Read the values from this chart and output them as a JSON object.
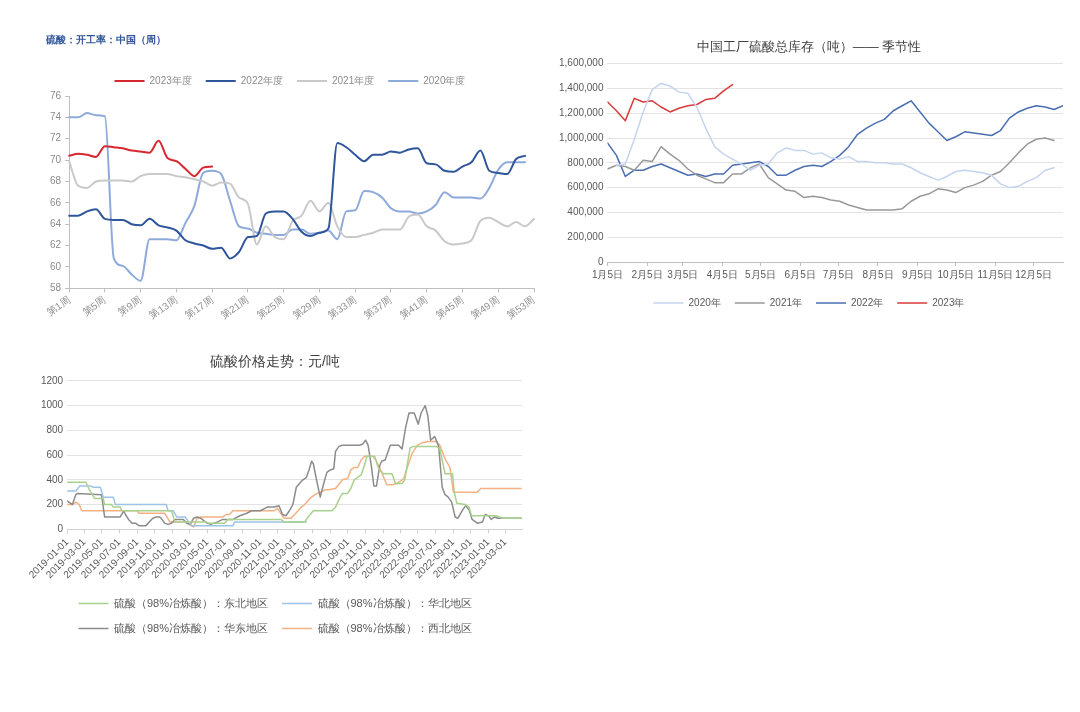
{
  "chart_data": [
    {
      "type": "line",
      "title": "硫酸：开工率：中国（周）",
      "legend": "top",
      "categories": [
        "第1周",
        null,
        null,
        null,
        "第5周",
        null,
        null,
        null,
        "第9周",
        null,
        null,
        null,
        "第13周",
        null,
        null,
        null,
        "第17周",
        null,
        null,
        null,
        "第21周",
        null,
        null,
        null,
        "第25周",
        null,
        null,
        null,
        "第29周",
        null,
        null,
        null,
        "第33周",
        null,
        null,
        null,
        "第37周",
        null,
        null,
        null,
        "第41周",
        null,
        null,
        null,
        "第45周",
        null,
        null,
        null,
        "第49周",
        null,
        null,
        null,
        "第53周"
      ],
      "series": [
        {
          "name": "2023年度",
          "color": "#d7282f",
          "values": [
            70.4,
            70.6,
            70.5,
            70.3,
            71.3,
            71.2,
            71.1,
            70.9,
            70.8,
            70.7,
            71.8,
            70.2,
            69.9,
            69.2,
            68.5,
            69.3,
            69.4,
            null,
            null,
            null,
            null,
            null,
            null,
            null,
            null,
            null,
            null,
            null,
            null,
            null,
            null,
            null,
            null,
            null,
            null,
            null,
            null,
            null,
            null,
            null,
            null,
            null,
            null,
            null,
            null,
            null,
            null,
            null,
            null,
            null,
            null,
            null,
            null
          ]
        },
        {
          "name": "2022年度",
          "color": "#2f559a",
          "values": [
            64.8,
            64.8,
            65.2,
            65.4,
            64.5,
            64.4,
            64.4,
            64.0,
            63.9,
            64.5,
            63.9,
            63.7,
            63.4,
            62.5,
            62.2,
            62.0,
            61.7,
            61.8,
            60.8,
            61.4,
            62.8,
            62.9,
            65.0,
            65.2,
            65.2,
            64.5,
            63.3,
            62.9,
            63.2,
            63.6,
            71.6,
            71.2,
            70.5,
            69.9,
            70.5,
            70.5,
            70.8,
            70.7,
            71.0,
            71.1,
            69.7,
            69.6,
            69.0,
            68.9,
            69.4,
            69.8,
            70.9,
            69.0,
            68.8,
            68.7,
            70.1,
            70.4,
            null
          ]
        },
        {
          "name": "2021年度",
          "color": "#c9c9c9",
          "values": [
            69.9,
            67.6,
            67.4,
            68.0,
            68.1,
            68.1,
            68.1,
            68.0,
            68.5,
            68.7,
            68.7,
            68.7,
            68.5,
            68.4,
            68.2,
            68.0,
            67.6,
            67.9,
            67.8,
            66.5,
            65.9,
            62.1,
            63.8,
            62.8,
            62.6,
            64.3,
            64.8,
            66.2,
            65.2,
            66.0,
            63.8,
            62.8,
            62.8,
            63.0,
            63.2,
            63.5,
            63.5,
            63.5,
            64.7,
            64.9,
            63.8,
            63.4,
            62.4,
            62.1,
            62.2,
            62.5,
            64.3,
            64.6,
            64.2,
            63.8,
            64.2,
            63.8,
            64.5
          ]
        },
        {
          "name": "2020年度",
          "color": "#8eaadb",
          "values": [
            74.0,
            74.0,
            74.4,
            74.2,
            74.1,
            60.8,
            60.1,
            59.3,
            58.7,
            62.6,
            62.6,
            62.6,
            62.5,
            64.1,
            65.7,
            68.8,
            69.0,
            68.7,
            66.2,
            63.8,
            63.6,
            63.2,
            63.1,
            63.0,
            63.0,
            63.5,
            63.5,
            63.1,
            63.2,
            63.4,
            62.6,
            65.2,
            65.3,
            67.1,
            67.0,
            66.5,
            65.5,
            65.2,
            65.2,
            65.0,
            65.2,
            65.8,
            67.0,
            66.5,
            66.5,
            66.5,
            66.4,
            67.4,
            69.1,
            69.8,
            69.8,
            69.8,
            null
          ]
        }
      ],
      "ylim": [
        58,
        76
      ],
      "yticks": [
        58,
        60,
        62,
        64,
        66,
        68,
        70,
        72,
        74,
        76
      ]
    },
    {
      "type": "line",
      "title": "中国工厂硫酸总库存（吨）—— 季节性",
      "legend": "bottom",
      "grid": "y",
      "x": [
        "--01-05",
        "--01-12",
        "--01-19",
        "--01-26",
        "--02-02",
        "--02-09",
        "--02-16",
        "--02-23",
        "--03-02",
        "--03-09",
        "--03-16",
        "--03-23",
        "--03-30",
        "--04-06",
        "--04-13",
        "--04-20",
        "--04-27",
        "--05-04",
        "--05-11",
        "--05-18",
        "--05-25",
        "--06-01",
        "--06-08",
        "--06-15",
        "--06-22",
        "--06-29",
        "--07-06",
        "--07-13",
        "--07-20",
        "--07-27",
        "--08-03",
        "--08-10",
        "--08-17",
        "--08-24",
        "--08-31",
        "--09-07",
        "--09-14",
        "--09-21",
        "--09-28",
        "--10-05",
        "--10-12",
        "--10-19",
        "--10-26",
        "--11-02",
        "--11-09",
        "--11-16",
        "--11-23",
        "--11-30",
        "--12-07",
        "--12-14",
        "--12-21",
        "--12-28"
      ],
      "series": [
        {
          "name": "2020年",
          "color": "#c5d4ee",
          "values": [
            null,
            780000,
            790000,
            990000,
            1210000,
            1390000,
            1440000,
            1420000,
            1370000,
            1360000,
            1250000,
            1080000,
            930000,
            870000,
            830000,
            790000,
            740000,
            780000,
            790000,
            880000,
            920000,
            900000,
            900000,
            870000,
            880000,
            840000,
            830000,
            850000,
            810000,
            810000,
            800000,
            800000,
            790000,
            790000,
            760000,
            720000,
            690000,
            660000,
            690000,
            730000,
            740000,
            730000,
            720000,
            700000,
            630000,
            600000,
            610000,
            650000,
            680000,
            740000,
            760000,
            null
          ]
        },
        {
          "name": "2021年",
          "color": "#999999",
          "values": [
            750000,
            780000,
            770000,
            740000,
            820000,
            810000,
            930000,
            870000,
            820000,
            750000,
            700000,
            670000,
            640000,
            640000,
            710000,
            710000,
            760000,
            790000,
            680000,
            630000,
            580000,
            570000,
            520000,
            530000,
            520000,
            500000,
            490000,
            460000,
            440000,
            420000,
            420000,
            420000,
            420000,
            430000,
            490000,
            530000,
            550000,
            590000,
            580000,
            560000,
            600000,
            620000,
            650000,
            700000,
            730000,
            800000,
            880000,
            950000,
            990000,
            1000000,
            980000,
            null
          ]
        },
        {
          "name": "2022年",
          "color": "#4a6eb0",
          "values": [
            960000,
            860000,
            690000,
            740000,
            740000,
            770000,
            790000,
            760000,
            730000,
            700000,
            710000,
            690000,
            710000,
            710000,
            780000,
            790000,
            800000,
            810000,
            770000,
            700000,
            700000,
            740000,
            770000,
            780000,
            770000,
            810000,
            860000,
            930000,
            1030000,
            1080000,
            1120000,
            1150000,
            1220000,
            1260000,
            1300000,
            1210000,
            1120000,
            1050000,
            980000,
            1010000,
            1050000,
            1040000,
            1030000,
            1020000,
            1060000,
            1160000,
            1210000,
            1240000,
            1260000,
            1250000,
            1230000,
            1260000
          ]
        },
        {
          "name": "2023年",
          "color": "#d93a3a",
          "values": [
            1290000,
            1220000,
            1140000,
            1320000,
            1290000,
            1300000,
            1250000,
            1210000,
            1240000,
            1260000,
            1270000,
            1310000,
            1320000,
            1380000,
            1430000,
            null,
            null,
            null,
            null,
            null,
            null,
            null,
            null,
            null,
            null,
            null,
            null,
            null,
            null,
            null,
            null,
            null,
            null,
            null,
            null,
            null,
            null,
            null,
            null,
            null,
            null,
            null,
            null,
            null,
            null,
            null,
            null,
            null,
            null,
            null,
            null,
            null
          ]
        }
      ],
      "xlim": [
        "--01-05",
        "--12-28"
      ],
      "xticks": [
        {
          "value": "--01-05",
          "label": "1月5日"
        },
        {
          "value": "--02-05",
          "label": "2月5日"
        },
        {
          "value": "--03-05",
          "label": "3月5日"
        },
        {
          "value": "--04-05",
          "label": "4月5日"
        },
        {
          "value": "--05-05",
          "label": "5月5日"
        },
        {
          "value": "--06-05",
          "label": "6月5日"
        },
        {
          "value": "--07-05",
          "label": "7月5日"
        },
        {
          "value": "--08-05",
          "label": "8月5日"
        },
        {
          "value": "--09-05",
          "label": "9月5日"
        },
        {
          "value": "--10-05",
          "label": "10月5日"
        },
        {
          "value": "--11-05",
          "label": "11月5日"
        },
        {
          "value": "--12-05",
          "label": "12月5日"
        }
      ],
      "ylim": [
        0,
        1600000
      ],
      "yticks": [
        0,
        {
          "value": 200000,
          "label": "200,000"
        },
        {
          "value": 400000,
          "label": "400,000"
        },
        {
          "value": 600000,
          "label": "600,000"
        },
        {
          "value": 800000,
          "label": "800,000"
        },
        {
          "value": 1000000,
          "label": "1,000,000"
        },
        {
          "value": 1200000,
          "label": "1,200,000"
        },
        {
          "value": 1400000,
          "label": "1,400,000"
        },
        {
          "value": 1600000,
          "label": "1,600,000"
        }
      ]
    },
    {
      "type": "line",
      "title": "硫酸价格走势：元/吨",
      "legend": "bottom",
      "grid": "y",
      "series": [
        {
          "name": "硫酸（98%冶炼酸）：东北地区",
          "color": "#a9d18e",
          "x": [
            "2019-01-01",
            "2019-03-07",
            "2019-03-19",
            "2019-04-06",
            "2019-05-06",
            "2019-05-11",
            "2019-06-04",
            "2019-06-10",
            "2019-07-04",
            "2019-07-10",
            "2019-12-29",
            "2020-01-10",
            "2020-04-25",
            "2020-05-07",
            "2020-06-30",
            "2020-07-11",
            "2021-01-11",
            "2021-01-23",
            "2021-04-04",
            "2021-04-16",
            "2021-05-04",
            "2021-07-08",
            "2021-07-20",
            "2021-08-03",
            "2021-08-13",
            "2021-08-31",
            "2021-09-11",
            "2021-09-23",
            "2021-10-05",
            "2021-10-17",
            "2021-10-29",
            "2021-11-06",
            "2021-12-03",
            "2021-12-15",
            "2021-12-21",
            "2022-01-02",
            "2022-02-01",
            "2022-02-13",
            "2022-03-08",
            "2022-03-17",
            "2022-04-05",
            "2022-04-19",
            "2022-07-05",
            "2022-07-17",
            "2022-08-04",
            "2022-08-30",
            "2022-09-05",
            "2022-09-14",
            "2022-10-14",
            "2022-10-26",
            "2022-11-04",
            "2023-01-28",
            "2023-02-09",
            "2023-02-21",
            "2023-04-25"
          ],
          "values": [
            380,
            380,
            320,
            250,
            250,
            200,
            200,
            180,
            180,
            150,
            150,
            60,
            60,
            50,
            50,
            80,
            80,
            60,
            60,
            100,
            150,
            150,
            180,
            250,
            290,
            290,
            330,
            400,
            420,
            440,
            520,
            590,
            590,
            500,
            480,
            450,
            450,
            370,
            370,
            400,
            660,
            670,
            670,
            650,
            450,
            450,
            300,
            210,
            200,
            180,
            110,
            110,
            100,
            90,
            90
          ]
        },
        {
          "name": "硫酸（98%冶炼酸）：华北地区",
          "color": "#9dc3e6",
          "x": [
            "2019-01-01",
            "2019-01-31",
            "2019-02-14",
            "2019-03-25",
            "2019-03-31",
            "2019-04-26",
            "2019-05-06",
            "2019-06-10",
            "2019-06-17",
            "2019-12-11",
            "2019-12-17",
            "2020-01-04",
            "2020-01-16",
            "2020-02-14",
            "2020-02-26",
            "2020-03-09",
            "2020-07-29",
            "2020-08-04",
            "2021-04-10"
          ],
          "values": [
            310,
            310,
            350,
            350,
            340,
            340,
            260,
            260,
            200,
            200,
            150,
            150,
            100,
            100,
            60,
            30,
            30,
            60,
            60
          ]
        },
        {
          "name": "硫酸（98%冶炼酸）：华东地区",
          "color": "#8c8c8c",
          "x": [
            "2019-01-01",
            "2019-01-19",
            "2019-01-31",
            "2019-02-06",
            "2019-04-30",
            "2019-05-11",
            "2019-07-04",
            "2019-07-16",
            "2019-07-22",
            "2019-08-02",
            "2019-08-14",
            "2019-08-26",
            "2019-09-07",
            "2019-10-01",
            "2019-10-25",
            "2019-11-05",
            "2019-11-17",
            "2019-11-23",
            "2019-12-05",
            "2019-12-17",
            "2019-12-29",
            "2020-01-10",
            "2020-01-21",
            "2020-02-08",
            "2020-02-20",
            "2020-03-03",
            "2020-03-15",
            "2020-03-27",
            "2020-04-08",
            "2020-04-19",
            "2020-05-01",
            "2020-05-13",
            "2020-05-25",
            "2020-06-06",
            "2020-06-24",
            "2020-07-29",
            "2020-08-22",
            "2020-09-15",
            "2020-10-02",
            "2020-11-01",
            "2020-11-25",
            "2020-12-19",
            "2021-01-05",
            "2021-01-17",
            "2021-01-29",
            "2021-02-10",
            "2021-02-22",
            "2021-03-06",
            "2021-03-17",
            "2021-03-29",
            "2021-04-10",
            "2021-04-19",
            "2021-04-28",
            "2021-05-04",
            "2021-05-16",
            "2021-05-28",
            "2021-06-09",
            "2021-06-20",
            "2021-07-02",
            "2021-07-14",
            "2021-07-20",
            "2021-08-01",
            "2021-08-13",
            "2021-10-11",
            "2021-10-23",
            "2021-11-01",
            "2021-11-10",
            "2021-11-22",
            "2021-11-30",
            "2021-12-09",
            "2021-12-21",
            "2021-12-27",
            "2022-01-08",
            "2022-01-26",
            "2022-02-24",
            "2022-03-08",
            "2022-03-20",
            "2022-04-01",
            "2022-04-19",
            "2022-05-03",
            "2022-05-13",
            "2022-05-27",
            "2022-06-05",
            "2022-06-15",
            "2022-06-29",
            "2022-07-13",
            "2022-07-25",
            "2022-08-04",
            "2022-08-15",
            "2022-08-27",
            "2022-09-08",
            "2022-09-18",
            "2022-10-02",
            "2022-10-14",
            "2022-10-26",
            "2022-11-06",
            "2022-11-24",
            "2022-12-12",
            "2022-12-21",
            "2023-01-02",
            "2023-01-11",
            "2023-01-23",
            "2023-02-03",
            "2023-02-15",
            "2023-04-25"
          ],
          "values": [
            230,
            200,
            280,
            290,
            280,
            100,
            100,
            150,
            120,
            80,
            50,
            50,
            30,
            30,
            90,
            100,
            100,
            90,
            50,
            40,
            50,
            80,
            80,
            80,
            50,
            40,
            90,
            100,
            90,
            70,
            50,
            40,
            50,
            60,
            80,
            80,
            110,
            130,
            150,
            150,
            180,
            180,
            190,
            120,
            110,
            150,
            200,
            340,
            370,
            400,
            420,
            480,
            550,
            530,
            390,
            260,
            370,
            460,
            480,
            490,
            630,
            670,
            680,
            680,
            690,
            720,
            680,
            500,
            350,
            350,
            520,
            550,
            560,
            680,
            680,
            650,
            820,
            940,
            940,
            850,
            940,
            1000,
            920,
            720,
            750,
            670,
            340,
            280,
            260,
            220,
            100,
            90,
            150,
            190,
            160,
            80,
            50,
            60,
            120,
            110,
            80,
            100,
            90,
            90,
            90
          ]
        },
        {
          "name": "硫酸（98%冶炼酸）：西北地区",
          "color": "#f4b183",
          "x": [
            "2019-01-01",
            "2019-01-19",
            "2019-01-31",
            "2019-02-12",
            "2019-02-21",
            "2019-09-01",
            "2019-09-07",
            "2019-12-05",
            "2019-12-11",
            "2019-12-23",
            "2020-01-04",
            "2020-02-14",
            "2020-02-26",
            "2020-03-15",
            "2020-03-27",
            "2020-04-08",
            "2020-06-24",
            "2020-07-06",
            "2020-07-17",
            "2020-07-29",
            "2020-12-19",
            "2020-12-30",
            "2021-01-11",
            "2021-01-23",
            "2021-02-16",
            "2021-02-28",
            "2021-03-12",
            "2021-03-23",
            "2021-04-04",
            "2021-04-22",
            "2021-05-10",
            "2021-05-28",
            "2021-06-14",
            "2021-06-26",
            "2021-07-20",
            "2021-08-13",
            "2021-08-31",
            "2021-09-11",
            "2021-09-23",
            "2021-10-05",
            "2021-10-17",
            "2021-10-29",
            "2021-11-27",
            "2021-12-09",
            "2021-12-27",
            "2022-01-14",
            "2022-02-01",
            "2022-02-18",
            "2022-03-02",
            "2022-03-14",
            "2022-03-26",
            "2022-04-13",
            "2022-05-01",
            "2022-05-18",
            "2022-06-05",
            "2022-07-05",
            "2022-07-17",
            "2022-08-04",
            "2022-08-21",
            "2022-09-02",
            "2022-11-24",
            "2022-12-06",
            "2023-01-11",
            "2023-04-25"
          ],
          "values": [
            200,
            200,
            220,
            200,
            150,
            150,
            130,
            130,
            110,
            60,
            60,
            60,
            40,
            20,
            90,
            100,
            100,
            120,
            120,
            150,
            150,
            170,
            130,
            90,
            90,
            120,
            150,
            180,
            200,
            250,
            280,
            300,
            320,
            320,
            330,
            400,
            410,
            480,
            500,
            500,
            560,
            590,
            590,
            550,
            460,
            360,
            360,
            370,
            390,
            410,
            500,
            620,
            680,
            700,
            710,
            710,
            680,
            570,
            500,
            300,
            300,
            330,
            330,
            330
          ]
        }
      ],
      "xlim": [
        "2019-01-01",
        "2023-04-28"
      ],
      "xticks": [
        "2019-01-01",
        "2019-03-01",
        "2019-05-01",
        "2019-07-01",
        "2019-09-01",
        "2019-11-01",
        "2020-01-01",
        "2020-03-01",
        "2020-05-01",
        "2020-07-01",
        "2020-09-01",
        "2020-11-01",
        "2021-01-01",
        "2021-03-01",
        "2021-05-01",
        "2021-07-01",
        "2021-09-01",
        "2021-11-01",
        "2022-01-01",
        "2022-03-01",
        "2022-05-01",
        "2022-07-01",
        "2022-09-01",
        "2022-11-01",
        "2023-01-01",
        "2023-03-01"
      ],
      "ylim": [
        0,
        1200
      ],
      "yticks": [
        0,
        200,
        400,
        600,
        800,
        1000,
        1200
      ]
    }
  ]
}
